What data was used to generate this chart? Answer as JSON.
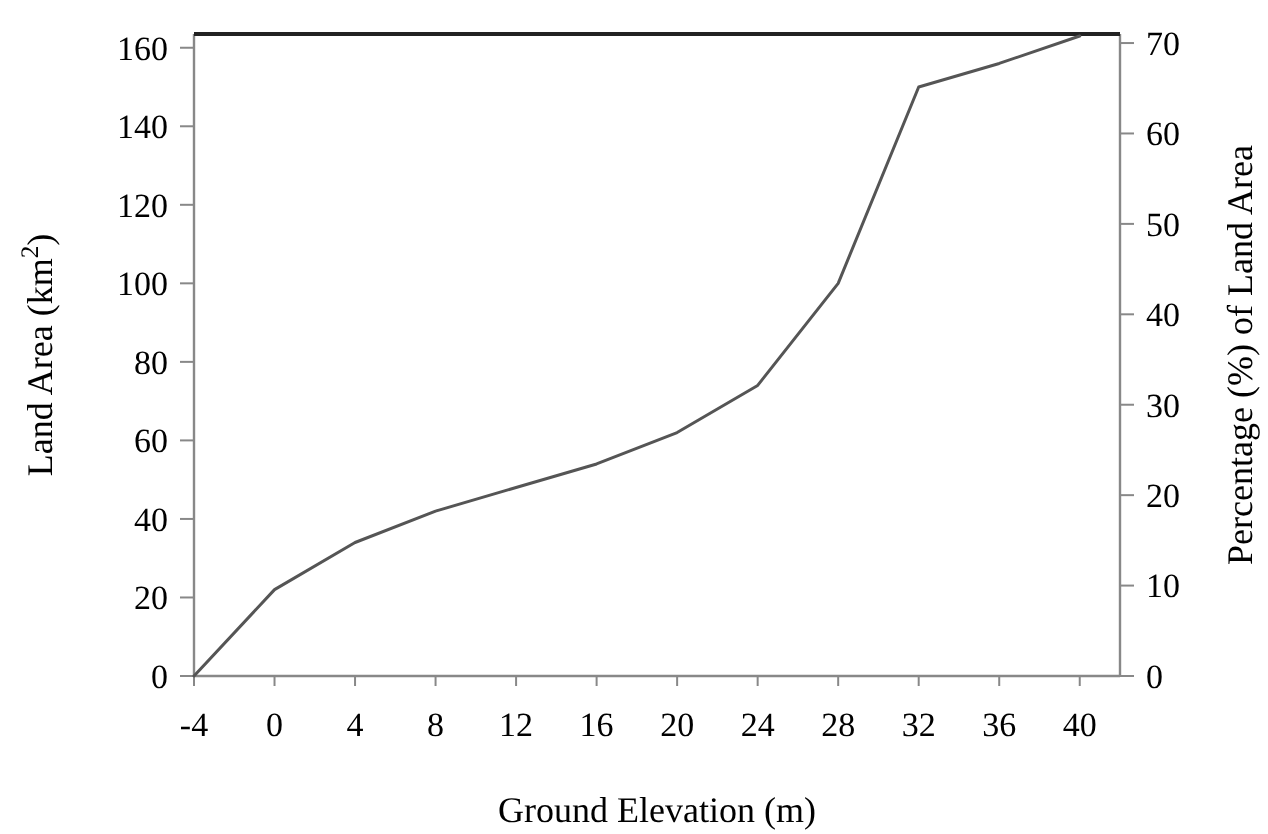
{
  "chart_data": {
    "type": "line",
    "xlabel": "Ground Elevation  (m)",
    "ylabel": "Land Area (km$^{2}$)",
    "y2label": "Percentage (%) of Land Area",
    "x": [
      -4,
      0,
      4,
      8,
      12,
      16,
      20,
      24,
      28,
      32,
      36,
      40
    ],
    "series": [
      {
        "color": "#555555",
        "values": [
          0,
          22,
          34,
          42,
          48,
          54,
          62,
          74,
          100,
          150,
          156,
          163
        ]
      }
    ],
    "xlim": [
      -4,
      42
    ],
    "xticks": [
      -4,
      0,
      4,
      8,
      12,
      16,
      20,
      24,
      28,
      32,
      36,
      40
    ],
    "ylim": [
      0,
      163.5
    ],
    "yticks": [
      0,
      20,
      40,
      60,
      80,
      100,
      120,
      140,
      160
    ],
    "y2lim": [
      0,
      71
    ],
    "y2ticks": [
      0,
      10,
      20,
      30,
      40,
      50,
      60,
      70
    ],
    "grid": false,
    "marker": "none",
    "line_style": "solid"
  }
}
